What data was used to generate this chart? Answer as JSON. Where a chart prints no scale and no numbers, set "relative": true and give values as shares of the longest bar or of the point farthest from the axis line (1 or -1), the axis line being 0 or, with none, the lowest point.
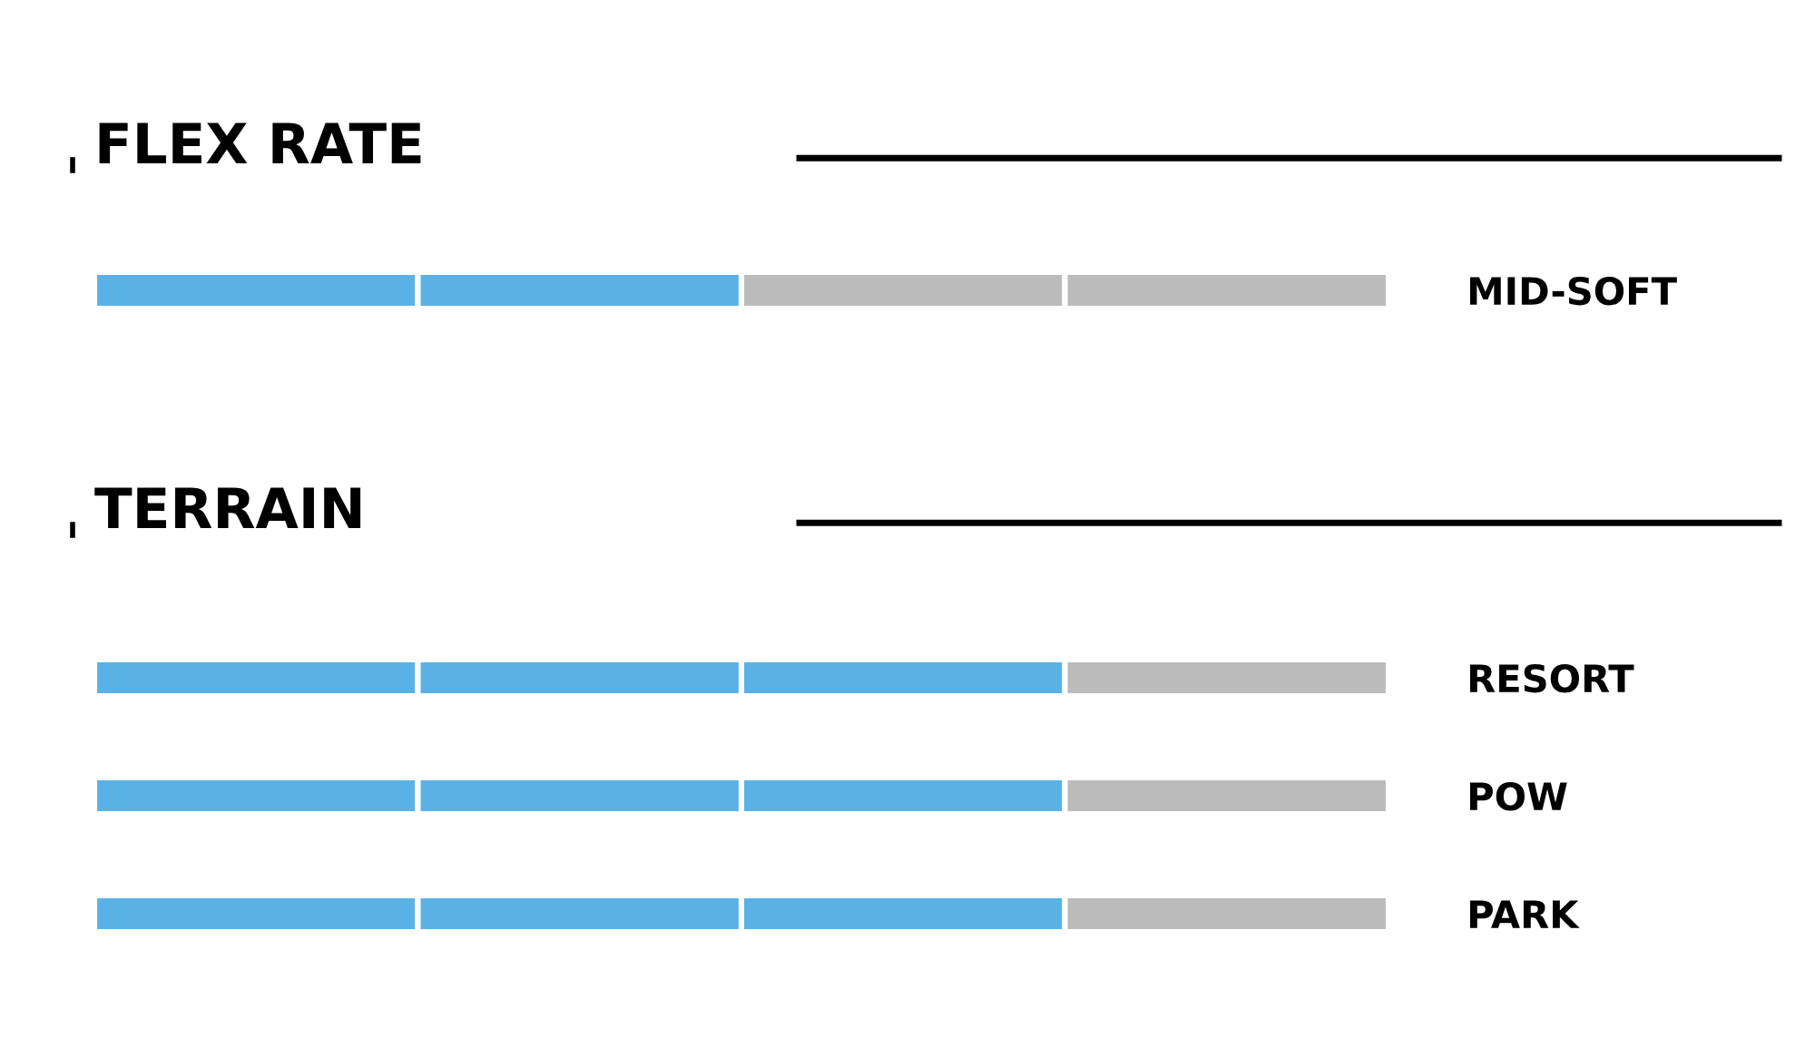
{
  "chart_data": [
    {
      "type": "bar",
      "orientation": "horizontal",
      "stacked": true,
      "relative": true,
      "tick_labels": "y",
      "title": "FLEX RATE",
      "categories": [
        "MID-SOFT"
      ],
      "series": [
        {
          "values": [
            0.25
          ],
          "colors": [
            "#5ab1e6"
          ]
        },
        {
          "values": [
            0.25
          ],
          "colors": [
            "#5ab1e6"
          ]
        },
        {
          "values": [
            0.25
          ],
          "colors": [
            "#bbbbbb"
          ]
        },
        {
          "values": [
            0.25
          ],
          "colors": [
            "#bbbbbb"
          ]
        }
      ]
    },
    {
      "type": "bar",
      "orientation": "horizontal",
      "stacked": true,
      "relative": true,
      "tick_labels": "y",
      "title": "TERRAIN",
      "categories": [
        "RESORT",
        "POW",
        "PARK"
      ],
      "series": [
        {
          "values": [
            0.25,
            0.25,
            0.25
          ],
          "colors": [
            "#5ab1e6",
            "#5ab1e6",
            "#5ab1e6"
          ]
        },
        {
          "values": [
            0.25,
            0.25,
            0.25
          ],
          "colors": [
            "#5ab1e6",
            "#5ab1e6",
            "#5ab1e6"
          ]
        },
        {
          "values": [
            0.25,
            0.25,
            0.25
          ],
          "colors": [
            "#5ab1e6",
            "#5ab1e6",
            "#5ab1e6"
          ]
        },
        {
          "values": [
            0.25,
            0.25,
            0.25
          ],
          "colors": [
            "#bbbbbb",
            "#bbbbbb",
            "#bbbbbb"
          ]
        }
      ]
    }
  ]
}
